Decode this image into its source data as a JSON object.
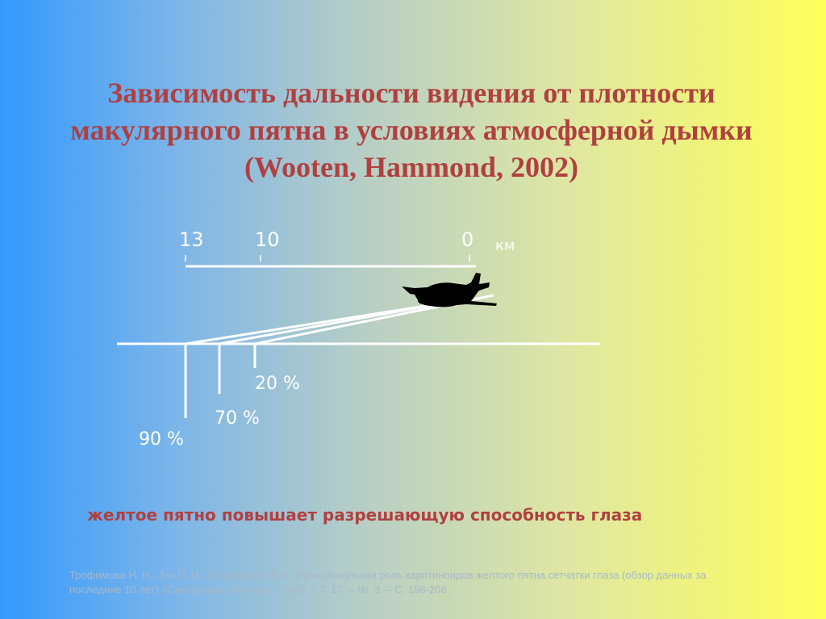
{
  "title": {
    "main": "Зависимость дальности видения от плотности макулярного пятна в условиях атмосферной дымки",
    "citation": "(Wooten, Hammond, 2002)"
  },
  "scale": {
    "ticks": [
      "13",
      "10",
      "0"
    ],
    "unit": "км"
  },
  "density_markers": [
    "90 %",
    "70 %",
    "20 %"
  ],
  "conclusion": "желтое пятно повышает разрешающую способность глаза",
  "reference": "Трофимова Н. Н., Зак П. П., Островский М. А. Функциональная роль каротиноидов желтого пятна сетчатки глаза (обзор данных за последние 10 лет) //Сенсорные системы. – 2003. – Т. 17. – №. 3. – С. 198-208.",
  "icons": {
    "airplane": "airplane-icon"
  },
  "colors": {
    "title": "#b04040",
    "lines": "#ffffff",
    "reference": "#a8b8c8"
  }
}
